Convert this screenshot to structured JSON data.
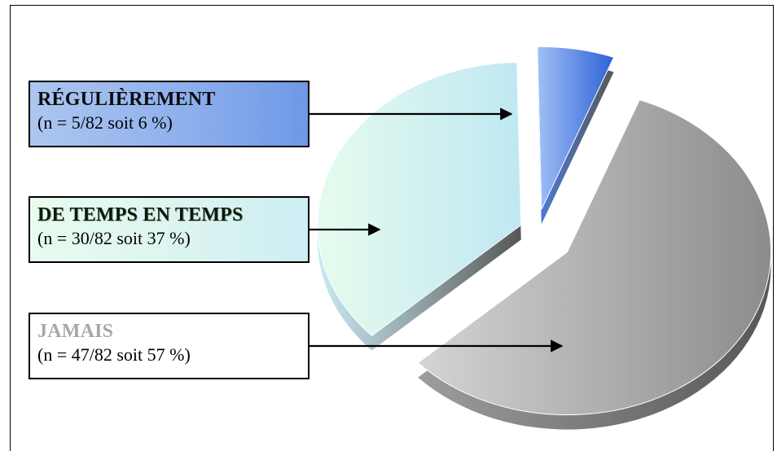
{
  "chart_data": {
    "type": "pie",
    "style": "exploded 3d",
    "slices": [
      {
        "key": "reg",
        "title": "RÉGULIÈREMENT",
        "detail": "(n = 5/82 soit 6 %)",
        "count": 5,
        "total": 82,
        "percent": 6,
        "color_light": "#9fc0f6",
        "color_dark": "#2e62d6"
      },
      {
        "key": "temps",
        "title": "DE TEMPS EN TEMPS",
        "detail": "(n = 30/82 soit 37 %)",
        "count": 30,
        "total": 82,
        "percent": 37,
        "color_light": "#e6fbee",
        "color_dark": "#bfe8f2"
      },
      {
        "key": "jamais",
        "title": "JAMAIS",
        "detail": "(n = 47/82 soit 57 %)",
        "count": 47,
        "total": 82,
        "percent": 57,
        "color_light": "#d4d4d4",
        "color_dark": "#8c8c8c",
        "title_color": "#a8a8a8"
      }
    ],
    "legend_placement": "left",
    "arrows_from_legend_to_slices": true
  }
}
